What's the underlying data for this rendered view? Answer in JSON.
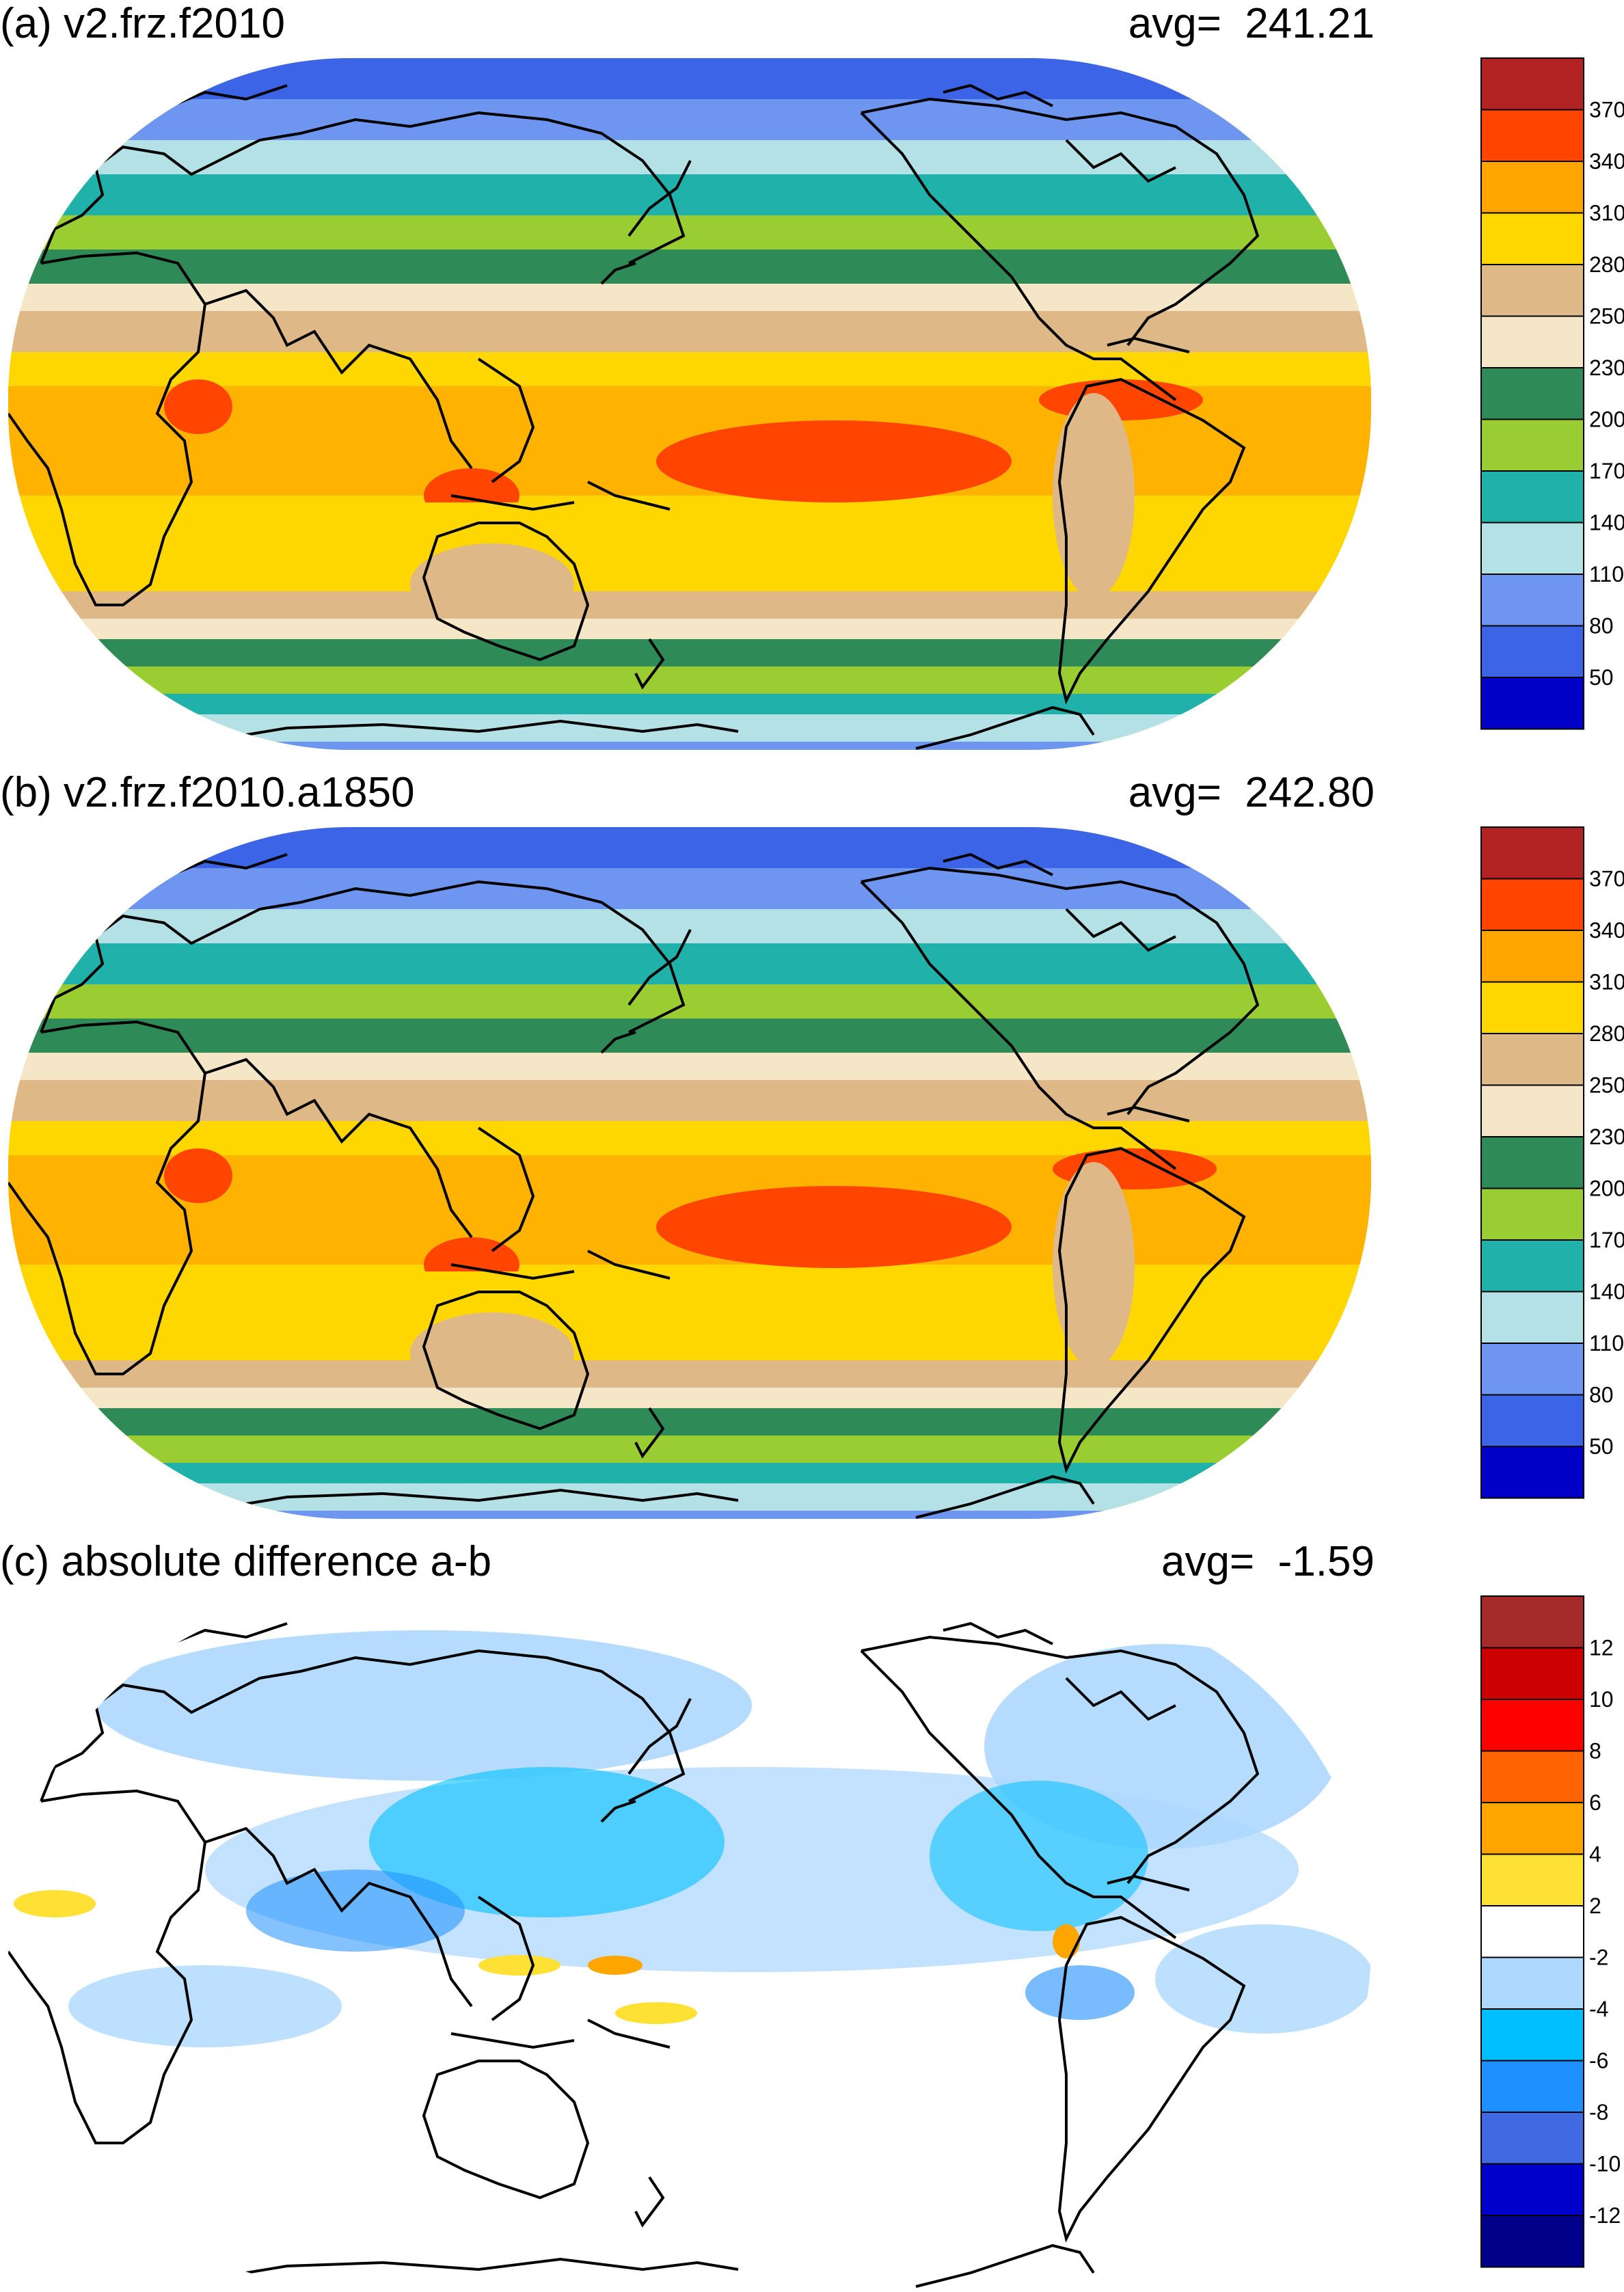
{
  "panels": [
    {
      "title": "(a) v2.frz.f2010",
      "avg_label": "avg=",
      "avg_value": "241.21",
      "colorbar": {
        "colors": [
          "#0000c8",
          "#3c64e6",
          "#6e96f0",
          "#b4e1e6",
          "#20b2aa",
          "#9acd32",
          "#2e8b57",
          "#f5e6c8",
          "#deb887",
          "#ffd700",
          "#ffa500",
          "#ff4500",
          "#b22222"
        ],
        "labels": [
          "50",
          "80",
          "110",
          "140",
          "170",
          "200",
          "230",
          "250",
          "280",
          "310",
          "340",
          "370"
        ]
      }
    },
    {
      "title": "(b) v2.frz.f2010.a1850",
      "avg_label": "avg=",
      "avg_value": "242.80",
      "colorbar": {
        "colors": [
          "#0000c8",
          "#3c64e6",
          "#6e96f0",
          "#b4e1e6",
          "#20b2aa",
          "#9acd32",
          "#2e8b57",
          "#f5e6c8",
          "#deb887",
          "#ffd700",
          "#ffa500",
          "#ff4500",
          "#b22222"
        ],
        "labels": [
          "50",
          "80",
          "110",
          "140",
          "170",
          "200",
          "230",
          "250",
          "280",
          "310",
          "340",
          "370"
        ]
      }
    },
    {
      "title": "(c) absolute difference a-b",
      "avg_label": "avg=",
      "avg_value": "-1.59",
      "colorbar": {
        "colors": [
          "#00008b",
          "#0000cd",
          "#4169e1",
          "#1e90ff",
          "#00bfff",
          "#add8ff",
          "#ffffff",
          "#ffe135",
          "#ffa500",
          "#ff6400",
          "#ff0000",
          "#cd0000",
          "#a52a2a"
        ],
        "labels": [
          "-12",
          "-10",
          "-8",
          "-6",
          "-4",
          "-2",
          "2",
          "4",
          "6",
          "8",
          "10",
          "12"
        ]
      }
    }
  ]
}
